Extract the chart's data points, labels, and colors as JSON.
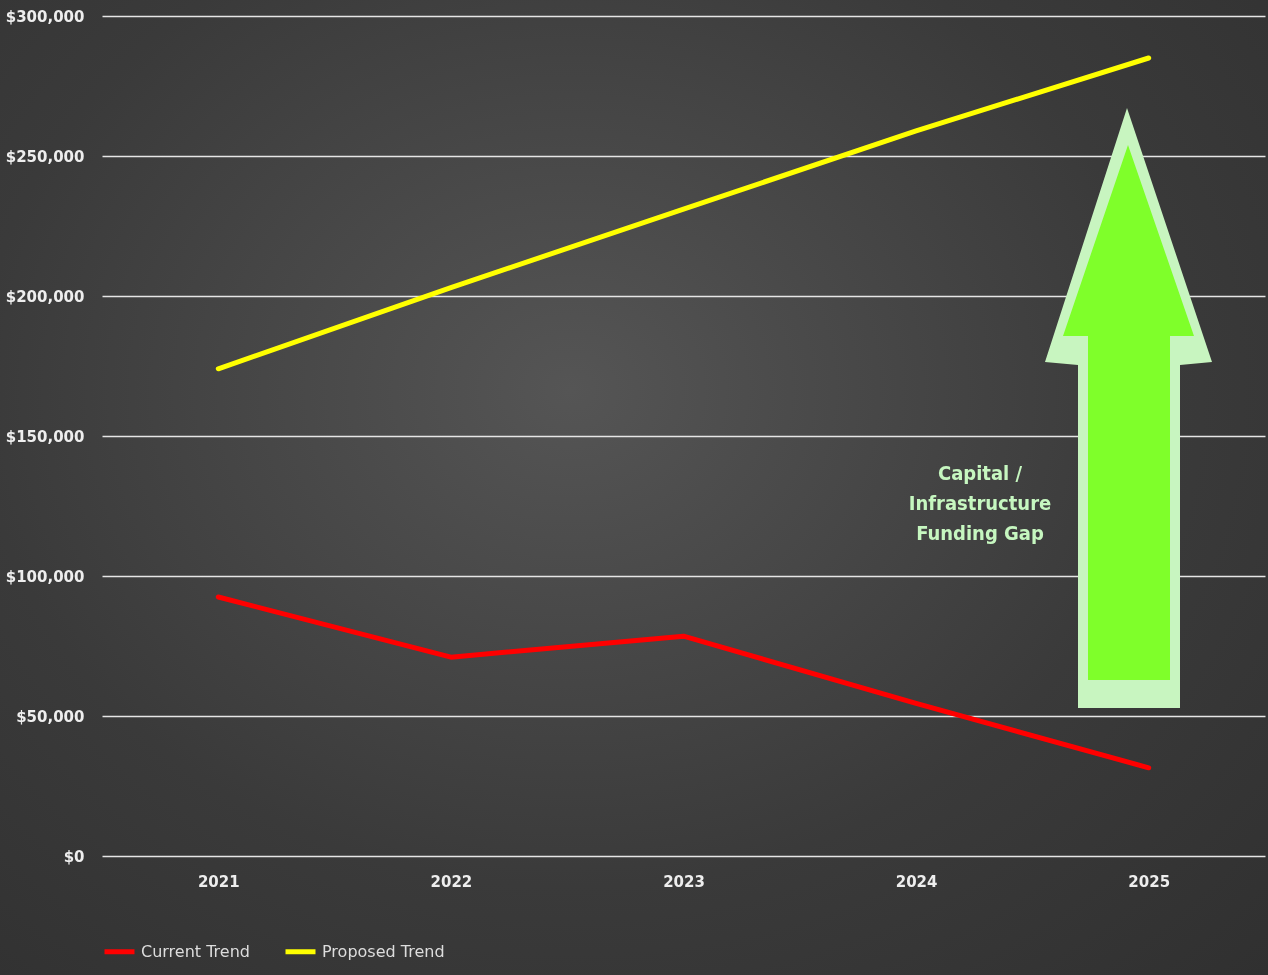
{
  "chart_data": {
    "type": "line",
    "categories": [
      "2021",
      "2022",
      "2023",
      "2024",
      "2025"
    ],
    "series": [
      {
        "name": "Current Trend",
        "color": "#ff0000",
        "values": [
          92500,
          71000,
          78500,
          54500,
          31500
        ]
      },
      {
        "name": "Proposed Trend",
        "color": "#ffff00",
        "values": [
          174000,
          203000,
          231000,
          259000,
          285000
        ]
      }
    ],
    "ylim": [
      0,
      300000
    ],
    "yticks": [
      {
        "value": 0,
        "label": "$0"
      },
      {
        "value": 50000,
        "label": "$50,000"
      },
      {
        "value": 100000,
        "label": "$100,000"
      },
      {
        "value": 150000,
        "label": "$150,000"
      },
      {
        "value": 200000,
        "label": "$200,000"
      },
      {
        "value": 250000,
        "label": "$250,000"
      },
      {
        "value": 300000,
        "label": "$300,000"
      }
    ],
    "grid": "y",
    "legend": "bottom",
    "marker": "none",
    "line_style": "solid",
    "annotations": [
      "Capital / Infrastructure Funding Gap"
    ]
  }
}
